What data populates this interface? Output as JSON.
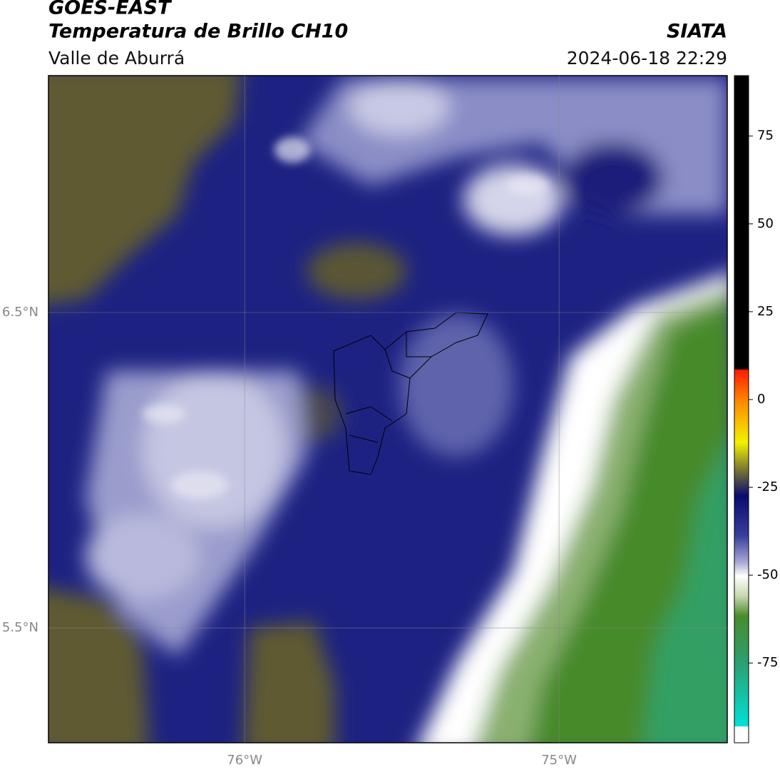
{
  "header": {
    "title": "GOES-EAST",
    "subtitle": "Temperatura de Brillo CH10",
    "region": "Valle de Aburrá",
    "source": "SIATA",
    "timestamp": "2024-06-18 22:29"
  },
  "map": {
    "lon_range": [
      -76.624,
      -74.465
    ],
    "lat_range": [
      5.136,
      7.251
    ],
    "lon_ticks": [
      {
        "value": -76,
        "label": "76°W"
      },
      {
        "value": -75,
        "label": "75°W"
      }
    ],
    "lat_ticks": [
      {
        "value": 6.5,
        "label": "6.5°N"
      },
      {
        "value": 5.5,
        "label": "5.5°N"
      }
    ]
  },
  "colorbar": {
    "range": [
      -97.7,
      92.2
    ],
    "ticks": [
      -75,
      -50,
      -25,
      0,
      25,
      50,
      75
    ]
  }
}
